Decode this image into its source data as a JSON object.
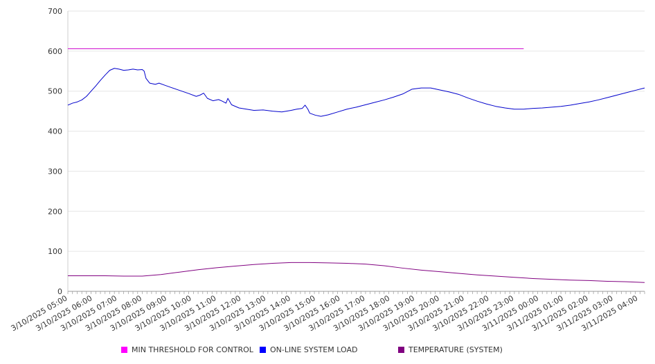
{
  "chart_data": {
    "type": "line",
    "title": "",
    "xlabel": "",
    "ylabel": "",
    "ylim": [
      0,
      700
    ],
    "yticks": [
      0,
      100,
      200,
      300,
      400,
      500,
      600,
      700
    ],
    "x_range_hours": [
      0,
      24.5
    ],
    "x_tick_labels": [
      "3/10/2025 05:00",
      "3/10/2025 06:00",
      "3/10/2025 07:00",
      "3/10/2025 08:00",
      "3/10/2025 09:00",
      "3/10/2025 10:00",
      "3/10/2025 11:00",
      "3/10/2025 12:00",
      "3/10/2025 13:00",
      "3/10/2025 14:00",
      "3/10/2025 15:00",
      "3/10/2025 16:00",
      "3/10/2025 17:00",
      "3/10/2025 18:00",
      "3/10/2025 19:00",
      "3/10/2025 20:00",
      "3/10/2025 21:00",
      "3/10/2025 22:00",
      "3/10/2025 23:00",
      "3/11/2025 00:00",
      "3/11/2025 01:00",
      "3/11/2025 02:00",
      "3/11/2025 03:00",
      "3/11/2025 04:00"
    ],
    "grid": true,
    "legend_position": "bottom",
    "series": [
      {
        "name": "MIN THRESHOLD FOR CONTROL",
        "color": "#cc00cc",
        "points": [
          [
            0,
            606
          ],
          [
            24.5,
            606
          ]
        ]
      },
      {
        "name": "ON-LINE SYSTEM LOAD",
        "color": "#0000cc",
        "points": [
          [
            0,
            465
          ],
          [
            0.25,
            470
          ],
          [
            0.5,
            473
          ],
          [
            0.75,
            478
          ],
          [
            1.0,
            487
          ],
          [
            1.25,
            500
          ],
          [
            1.5,
            513
          ],
          [
            1.75,
            527
          ],
          [
            2.0,
            540
          ],
          [
            2.25,
            552
          ],
          [
            2.5,
            557
          ],
          [
            2.75,
            555
          ],
          [
            3.0,
            552
          ],
          [
            3.25,
            553
          ],
          [
            3.5,
            555
          ],
          [
            3.75,
            553
          ],
          [
            4.0,
            554
          ],
          [
            4.1,
            550
          ],
          [
            4.2,
            532
          ],
          [
            4.4,
            520
          ],
          [
            4.7,
            517
          ],
          [
            4.9,
            520
          ],
          [
            5.2,
            515
          ],
          [
            5.5,
            510
          ],
          [
            6.0,
            502
          ],
          [
            6.5,
            494
          ],
          [
            6.9,
            487
          ],
          [
            7.1,
            490
          ],
          [
            7.3,
            495
          ],
          [
            7.5,
            482
          ],
          [
            7.8,
            476
          ],
          [
            8.1,
            479
          ],
          [
            8.3,
            475
          ],
          [
            8.5,
            470
          ],
          [
            8.6,
            482
          ],
          [
            8.8,
            466
          ],
          [
            9.2,
            458
          ],
          [
            9.6,
            455
          ],
          [
            10.0,
            452
          ],
          [
            10.5,
            453
          ],
          [
            11.0,
            450
          ],
          [
            11.5,
            448
          ],
          [
            12.0,
            452
          ],
          [
            12.3,
            455
          ],
          [
            12.6,
            457
          ],
          [
            12.75,
            465
          ],
          [
            12.9,
            455
          ],
          [
            13.0,
            445
          ],
          [
            13.3,
            440
          ],
          [
            13.6,
            437
          ],
          [
            14.0,
            441
          ],
          [
            14.5,
            448
          ],
          [
            15.0,
            455
          ],
          [
            15.5,
            460
          ],
          [
            16.0,
            466
          ],
          [
            16.5,
            472
          ],
          [
            17.0,
            478
          ],
          [
            17.5,
            485
          ],
          [
            18.0,
            493
          ],
          [
            18.5,
            505
          ],
          [
            19.0,
            508
          ],
          [
            19.5,
            508
          ],
          [
            20.0,
            503
          ],
          [
            20.5,
            498
          ],
          [
            21.0,
            492
          ],
          [
            21.5,
            483
          ],
          [
            22.0,
            475
          ],
          [
            22.5,
            468
          ],
          [
            23.0,
            462
          ],
          [
            23.5,
            458
          ],
          [
            24.0,
            455
          ],
          [
            24.5,
            455
          ],
          [
            25.0,
            457
          ],
          [
            25.5,
            458
          ],
          [
            26.0,
            460
          ],
          [
            26.5,
            462
          ],
          [
            27.0,
            465
          ],
          [
            27.5,
            469
          ],
          [
            28.0,
            473
          ],
          [
            28.5,
            478
          ],
          [
            29.0,
            484
          ],
          [
            29.5,
            490
          ],
          [
            30.0,
            496
          ],
          [
            30.5,
            502
          ],
          [
            31.0,
            508
          ]
        ]
      },
      {
        "name": "TEMPERATURE (SYSTEM)",
        "color": "#800080",
        "points": [
          [
            0,
            39
          ],
          [
            1,
            39
          ],
          [
            2,
            39
          ],
          [
            3,
            38
          ],
          [
            4,
            38
          ],
          [
            5,
            42
          ],
          [
            6,
            48
          ],
          [
            7,
            54
          ],
          [
            8,
            59
          ],
          [
            9,
            63
          ],
          [
            10,
            67
          ],
          [
            11,
            70
          ],
          [
            12,
            72
          ],
          [
            13,
            72
          ],
          [
            14,
            71
          ],
          [
            15,
            70
          ],
          [
            16,
            68
          ],
          [
            17,
            64
          ],
          [
            18,
            58
          ],
          [
            19,
            53
          ],
          [
            20,
            49
          ],
          [
            21,
            45
          ],
          [
            22,
            41
          ],
          [
            23,
            38
          ],
          [
            24,
            35
          ],
          [
            25,
            32
          ],
          [
            26,
            30
          ],
          [
            27,
            28
          ],
          [
            28,
            27
          ],
          [
            29,
            25
          ],
          [
            30,
            24
          ],
          [
            31,
            22
          ]
        ]
      }
    ]
  }
}
